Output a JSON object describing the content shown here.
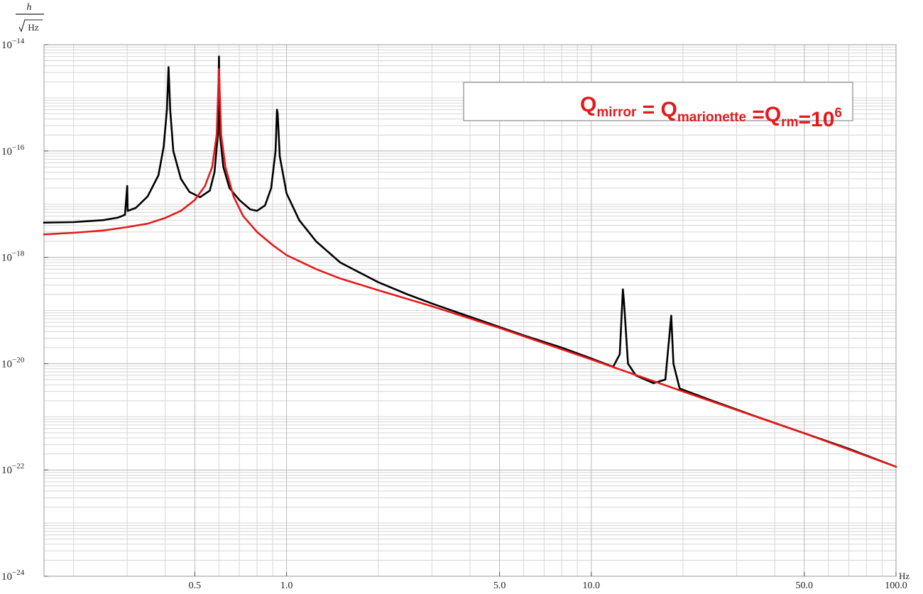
{
  "chart_data": {
    "type": "line",
    "x_scale": "log",
    "y_scale": "log",
    "xlim": [
      0.16,
      100
    ],
    "ylim": [
      1e-24,
      1e-14
    ],
    "grid": true,
    "ylabel": {
      "numerator": "h",
      "denominator": "Hz"
    },
    "xlabel": "Hz",
    "x_ticks": [
      {
        "value": 0.5,
        "label": "0.5"
      },
      {
        "value": 1,
        "label": "1.0"
      },
      {
        "value": 5,
        "label": "5.0"
      },
      {
        "value": 10,
        "label": "10.0"
      },
      {
        "value": 50,
        "label": "50.0"
      },
      {
        "value": 100,
        "label": "100.0"
      }
    ],
    "y_ticks": [
      {
        "value": 1e-14,
        "base": "10",
        "exp": "−14"
      },
      {
        "value": 1e-16,
        "base": "10",
        "exp": "−16"
      },
      {
        "value": 1e-18,
        "base": "10",
        "exp": "−18"
      },
      {
        "value": 1e-20,
        "base": "10",
        "exp": "−20"
      },
      {
        "value": 1e-22,
        "base": "10",
        "exp": "−22"
      },
      {
        "value": 1e-24,
        "base": "10",
        "exp": "−24"
      }
    ],
    "legend": {
      "placement": "top-right",
      "parts": [
        {
          "text": "Q",
          "sub": "mirror"
        },
        {
          "text": " = Q",
          "sub": "marionette"
        },
        {
          "text": " =Q",
          "sub": "rm"
        },
        {
          "text": "=10",
          "sup": "6"
        }
      ]
    },
    "series": [
      {
        "color": "#000000",
        "points": [
          [
            0.16,
            4.5e-18
          ],
          [
            0.2,
            4.6e-18
          ],
          [
            0.25,
            5e-18
          ],
          [
            0.28,
            5.6e-18
          ],
          [
            0.295,
            6.3e-18
          ],
          [
            0.3,
            2.2e-17
          ],
          [
            0.301,
            7.5e-18
          ],
          [
            0.32,
            8.5e-18
          ],
          [
            0.35,
            1.4e-17
          ],
          [
            0.38,
            3.5e-17
          ],
          [
            0.395,
            1.2e-16
          ],
          [
            0.405,
            6e-16
          ],
          [
            0.41,
            3.8e-15
          ],
          [
            0.415,
            6e-16
          ],
          [
            0.425,
            1e-16
          ],
          [
            0.45,
            3e-17
          ],
          [
            0.48,
            1.7e-17
          ],
          [
            0.52,
            1.35e-17
          ],
          [
            0.56,
            1.8e-17
          ],
          [
            0.58,
            4e-17
          ],
          [
            0.595,
            2e-16
          ],
          [
            0.6,
            6e-15
          ],
          [
            0.605,
            2e-16
          ],
          [
            0.62,
            5e-17
          ],
          [
            0.65,
            2e-17
          ],
          [
            0.7,
            1.2e-17
          ],
          [
            0.76,
            8e-18
          ],
          [
            0.8,
            7.5e-18
          ],
          [
            0.85,
            9.5e-18
          ],
          [
            0.89,
            2e-17
          ],
          [
            0.92,
            1e-16
          ],
          [
            0.93,
            6e-16
          ],
          [
            0.935,
            5e-16
          ],
          [
            0.95,
            8e-17
          ],
          [
            1.0,
            1.6e-17
          ],
          [
            1.1,
            5e-18
          ],
          [
            1.25,
            2e-18
          ],
          [
            1.5,
            8e-19
          ],
          [
            2.0,
            3.4e-19
          ],
          [
            2.5,
            2e-19
          ],
          [
            3.0,
            1.35e-19
          ],
          [
            4.0,
            7.6e-20
          ],
          [
            6.0,
            3.4e-20
          ],
          [
            8.0,
            2e-20
          ],
          [
            10.0,
            1.25e-20
          ],
          [
            11.8,
            8.7e-21
          ],
          [
            12.4,
            1.5e-20
          ],
          [
            12.7,
            2.5e-19
          ],
          [
            12.8,
            1.5e-19
          ],
          [
            13.2,
            1e-20
          ],
          [
            14.0,
            6e-21
          ],
          [
            16.0,
            4.3e-21
          ],
          [
            17.5,
            5e-21
          ],
          [
            18.3,
            8e-20
          ],
          [
            18.6,
            1e-20
          ],
          [
            19.5,
            3.4e-21
          ],
          [
            25.0,
            2e-21
          ],
          [
            35.0,
            1e-21
          ],
          [
            50.0,
            4.9e-22
          ],
          [
            70.0,
            2.5e-22
          ],
          [
            100.0,
            1.15e-22
          ]
        ]
      },
      {
        "color": "#e31a1c",
        "points": [
          [
            0.16,
            2.7e-18
          ],
          [
            0.2,
            2.9e-18
          ],
          [
            0.25,
            3.2e-18
          ],
          [
            0.3,
            3.7e-18
          ],
          [
            0.35,
            4.3e-18
          ],
          [
            0.4,
            5.5e-18
          ],
          [
            0.45,
            7.5e-18
          ],
          [
            0.5,
            1.2e-17
          ],
          [
            0.54,
            2.2e-17
          ],
          [
            0.57,
            5e-17
          ],
          [
            0.59,
            2e-16
          ],
          [
            0.6,
            3.5e-15
          ],
          [
            0.61,
            2e-16
          ],
          [
            0.63,
            5e-17
          ],
          [
            0.67,
            1.4e-17
          ],
          [
            0.72,
            6e-18
          ],
          [
            0.8,
            3e-18
          ],
          [
            0.9,
            1.7e-18
          ],
          [
            1.0,
            1.1e-18
          ],
          [
            1.25,
            6e-19
          ],
          [
            1.5,
            4e-19
          ],
          [
            2.0,
            2.4e-19
          ],
          [
            3.0,
            1.2e-19
          ],
          [
            5.0,
            4.7e-20
          ],
          [
            10.0,
            1.2e-20
          ],
          [
            20.0,
            3e-21
          ],
          [
            50.0,
            4.9e-22
          ],
          [
            100.0,
            1.15e-22
          ]
        ]
      }
    ]
  }
}
